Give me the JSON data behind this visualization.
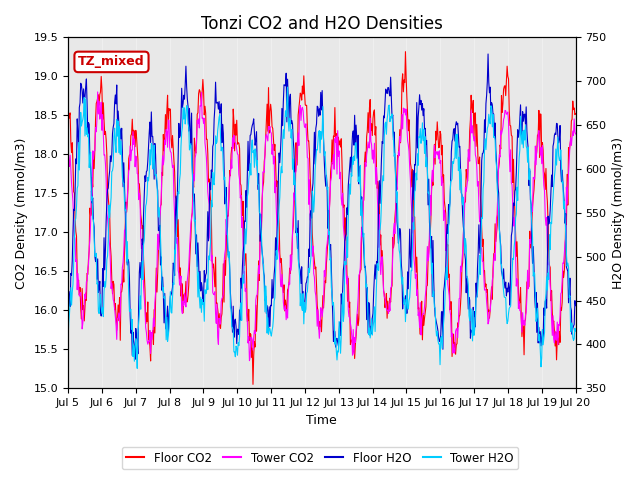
{
  "title": "Tonzi CO2 and H2O Densities",
  "xlabel": "Time",
  "ylabel_left": "CO2 Density (mmol/m3)",
  "ylabel_right": "H2O Density (mmol/m3)",
  "ylim_left": [
    15.0,
    19.5
  ],
  "ylim_right": [
    350,
    750
  ],
  "x_ticks": [
    "Jul 5",
    "Jul 6",
    "Jul 7",
    "Jul 8",
    "Jul 9",
    "Jul 10",
    "Jul 11",
    "Jul 12",
    "Jul 13",
    "Jul 14",
    "Jul 15",
    "Jul 16",
    "Jul 17",
    "Jul 18",
    "Jul 19",
    "Jul 20"
  ],
  "n_days": 15,
  "n_points_per_day": 48,
  "annotation_text": "TZ_mixed",
  "annotation_color": "#cc0000",
  "floor_co2_color": "#ff0000",
  "tower_co2_color": "#ff00ff",
  "floor_h2o_color": "#0000cc",
  "tower_h2o_color": "#00ccff",
  "legend_labels": [
    "Floor CO2",
    "Tower CO2",
    "Floor H2O",
    "Tower H2O"
  ],
  "background_color": "#e8e8e8",
  "title_fontsize": 12,
  "axis_fontsize": 9,
  "tick_fontsize": 8
}
